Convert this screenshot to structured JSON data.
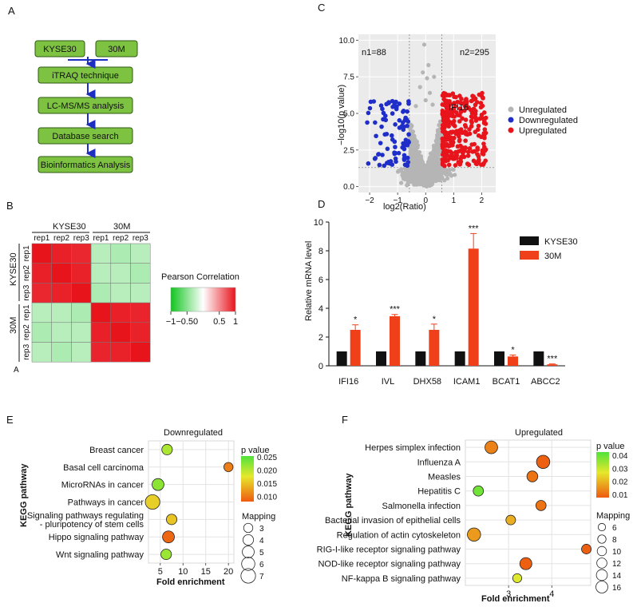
{
  "panels": {
    "a": "A",
    "b": "B",
    "b2": "A",
    "c": "C",
    "d": "D",
    "e": "E",
    "f": "F"
  },
  "panel_a": {
    "colors": {
      "box_fill": "#7ec242",
      "box_stroke": "#2d5a10",
      "arrow": "#1c2fc0"
    },
    "top_left": "KYSE30",
    "top_right": "30M",
    "steps": [
      "iTRAQ technique",
      "LC-MS/MS analysis",
      "Database search",
      "Bioinformatics Analysis"
    ]
  },
  "panel_b": {
    "group1": "KYSE30",
    "group2": "30M",
    "col_labels": [
      "rep1",
      "rep2",
      "rep3",
      "rep1",
      "rep2",
      "rep3"
    ],
    "row_labels": [
      "rep1",
      "rep2",
      "rep3",
      "rep1",
      "rep2",
      "rep3"
    ],
    "legend_title": "Pearson Correlation",
    "legend_ticks": [
      "−1",
      "−0.50",
      "0.5",
      "1"
    ],
    "matrix": [
      [
        1,
        0.95,
        0.92,
        -0.3,
        -0.35,
        -0.3
      ],
      [
        0.95,
        1,
        0.94,
        -0.3,
        -0.3,
        -0.35
      ],
      [
        0.92,
        0.94,
        1,
        -0.35,
        -0.3,
        -0.3
      ],
      [
        -0.3,
        -0.3,
        -0.35,
        1,
        0.95,
        0.93
      ],
      [
        -0.35,
        -0.3,
        -0.3,
        0.95,
        1,
        0.94
      ],
      [
        -0.3,
        -0.35,
        -0.3,
        0.93,
        0.94,
        1
      ]
    ]
  },
  "chart_data": [
    {
      "type": "scatter",
      "panel": "C",
      "xlabel": "log2(Ratio)",
      "ylabel": "−log10(p value)",
      "xlim": [
        -2.4,
        2.5
      ],
      "ylim": [
        -0.4,
        10.4
      ],
      "xticks": [
        "−2",
        "−1",
        "0",
        "1",
        "2"
      ],
      "yticks": [
        "0.0",
        "2.5",
        "5.0",
        "7.5",
        "10.0"
      ],
      "annotation_left": "n1=88",
      "annotation_right": "n2=295",
      "highlight": "IFI16",
      "legend": [
        "Unregulated",
        "Downregulated",
        "Upregulated"
      ],
      "colors": {
        "Unregulated": "#b5b5b5",
        "Downregulated": "#1f2ec8",
        "Upregulated": "#e8141c"
      },
      "thresholds": {
        "x": [
          -0.58,
          0.58
        ],
        "y": 1.3
      }
    },
    {
      "type": "bar",
      "panel": "D",
      "ylabel": "Relative mRNA level",
      "categories": [
        "IFI16",
        "IVL",
        "DHX58",
        "ICAM1",
        "BCAT1",
        "ABCC2"
      ],
      "yticks": [
        "0",
        "2",
        "4",
        "6",
        "8",
        "10"
      ],
      "ylim": [
        0,
        10
      ],
      "series": [
        {
          "name": "KYSE30",
          "values": [
            1,
            1,
            1,
            1,
            1,
            1
          ],
          "color": "#111111"
        },
        {
          "name": "30M",
          "values": [
            2.5,
            3.45,
            2.5,
            8.15,
            0.65,
            0.1
          ],
          "errors": [
            0.35,
            0.12,
            0.4,
            1.05,
            0.1,
            0.03
          ],
          "color": "#f0401a"
        }
      ],
      "significance": [
        "*",
        "***",
        "*",
        "***",
        "*",
        "***"
      ]
    },
    {
      "type": "scatter",
      "panel": "E",
      "title": "Downregulated",
      "ylabel": "KEGG pathway",
      "xlabel": "Fold enrichment",
      "xticks": [
        "5",
        "10",
        "15",
        "20"
      ],
      "pathways": [
        "Breast cancer",
        "Basal cell carcinoma",
        "MicroRNAs in cancer",
        "Pathways in cancer",
        "Signaling pathways regulating",
        "- pluripotency of stem cells",
        "Hippo signaling pathway",
        "Wnt signaling pathway"
      ],
      "points": [
        {
          "pathway": "Breast cancer",
          "fold": 6.5,
          "p": 0.021,
          "mapping": 4
        },
        {
          "pathway": "Basal cell carcinoma",
          "fold": 20,
          "p": 0.008,
          "mapping": 3
        },
        {
          "pathway": "MicroRNAs in cancer",
          "fold": 4.5,
          "p": 0.023,
          "mapping": 5
        },
        {
          "pathway": "Pathways in cancer",
          "fold": 3.3,
          "p": 0.015,
          "mapping": 7
        },
        {
          "pathway": "Signaling pathways regulating pluripotency of stem cells",
          "fold": 7.5,
          "p": 0.014,
          "mapping": 4
        },
        {
          "pathway": "Hippo signaling pathway",
          "fold": 6.8,
          "p": 0.006,
          "mapping": 5
        },
        {
          "pathway": "Wnt signaling pathway",
          "fold": 6.3,
          "p": 0.022,
          "mapping": 4
        }
      ],
      "pvalue_title": "p value",
      "pvalue_ticks": [
        "0.025",
        "0.020",
        "0.015",
        "0.010"
      ],
      "mapping_title": "Mapping",
      "mapping_ticks": [
        "3",
        "4",
        "5",
        "6",
        "7"
      ]
    },
    {
      "type": "scatter",
      "panel": "F",
      "title": "Upregulated",
      "ylabel": "KEGG pathway",
      "xlabel": "Fold enrichment",
      "xticks": [
        "3",
        "4"
      ],
      "pathways": [
        "Herpes simplex infection",
        "Influenza A",
        "Measles",
        "Hepatitis C",
        "Salmonella infection",
        "Bacterial invasion of epithelial cells",
        "Regulation of actin cytoskeleton",
        "RIG-I-like receptor signaling pathway",
        "NOD-like receptor signaling pathway",
        "NF-kappa B signaling pathway"
      ],
      "points": [
        {
          "pathway": "Herpes simplex infection",
          "fold": 2.6,
          "p": 0.008,
          "mapping": 13
        },
        {
          "pathway": "Influenza A",
          "fold": 3.8,
          "p": 0.003,
          "mapping": 14
        },
        {
          "pathway": "Measles",
          "fold": 3.55,
          "p": 0.006,
          "mapping": 10
        },
        {
          "pathway": "Hepatitis C",
          "fold": 2.3,
          "p": 0.038,
          "mapping": 9
        },
        {
          "pathway": "Salmonella infection",
          "fold": 3.75,
          "p": 0.006,
          "mapping": 9
        },
        {
          "pathway": "Bacterial invasion of epithelial cells",
          "fold": 3.05,
          "p": 0.015,
          "mapping": 8
        },
        {
          "pathway": "Regulation of actin cytoskeleton",
          "fold": 2.2,
          "p": 0.012,
          "mapping": 14
        },
        {
          "pathway": "RIG-I-like receptor signaling pathway",
          "fold": 4.8,
          "p": 0.003,
          "mapping": 8
        },
        {
          "pathway": "NOD-like receptor signaling pathway",
          "fold": 3.4,
          "p": 0.003,
          "mapping": 12
        },
        {
          "pathway": "NF-kappa B signaling pathway",
          "fold": 3.2,
          "p": 0.025,
          "mapping": 7
        }
      ],
      "pvalue_title": "p value",
      "pvalue_ticks": [
        "0.04",
        "0.03",
        "0.02",
        "0.01"
      ],
      "mapping_title": "Mapping",
      "mapping_ticks": [
        "6",
        "8",
        "10",
        "12",
        "14",
        "16"
      ]
    }
  ]
}
